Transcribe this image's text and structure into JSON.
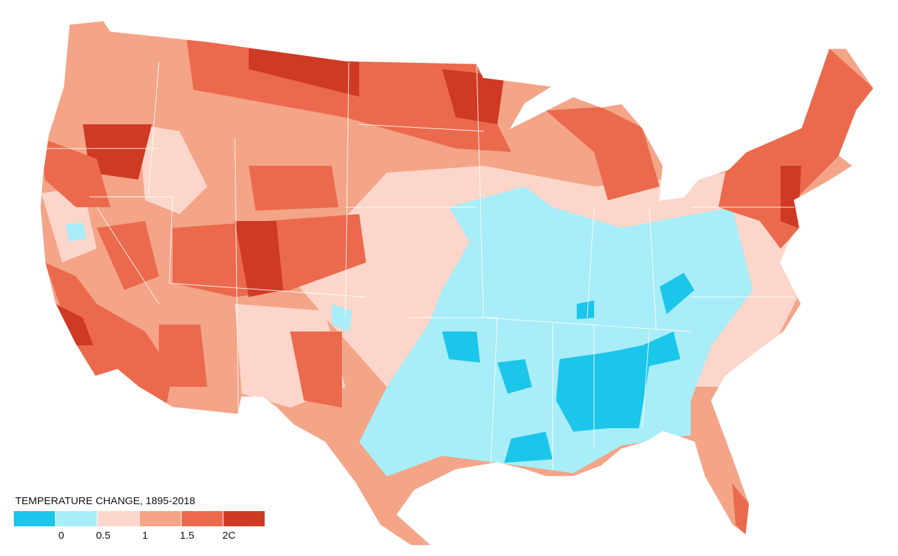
{
  "legend": {
    "title": "TEMPERATURE CHANGE, 1895-2018",
    "colors": [
      "#1bc6ea",
      "#a8edf8",
      "#fcd6ca",
      "#f4a487",
      "#eb6a4d",
      "#cf3a25"
    ],
    "ticks": [
      0,
      0.5,
      1,
      1.5,
      {
        "value": 2,
        "label": "2C"
      }
    ]
  }
}
